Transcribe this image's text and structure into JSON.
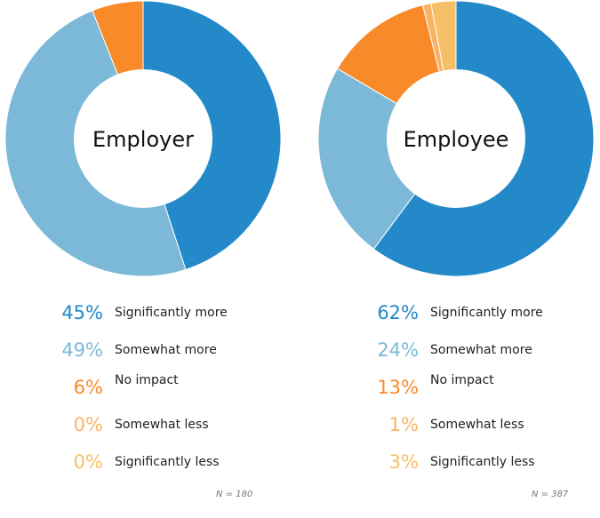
{
  "colors": {
    "significantly_more": "#2389c9",
    "somewhat_more": "#7cb9d9",
    "no_impact": "#f98a2a",
    "somewhat_less": "#fab366",
    "significantly_less": "#f6c068"
  },
  "categories": [
    "Significantly more",
    "Somewhat more",
    "No impact",
    "Somewhat less",
    "Significantly less"
  ],
  "chart_data": [
    {
      "type": "pie",
      "title": "Employer",
      "categories": [
        "Significantly more",
        "Somewhat more",
        "No impact",
        "Somewhat less",
        "Significantly less"
      ],
      "values": [
        45,
        49,
        6,
        0,
        0
      ],
      "value_labels": [
        "45%",
        "49%",
        "6%",
        "0%",
        "0%"
      ],
      "donut": true,
      "n_label": "N = 180"
    },
    {
      "type": "pie",
      "title": "Employee",
      "categories": [
        "Significantly more",
        "Somewhat more",
        "No impact",
        "Somewhat less",
        "Significantly less"
      ],
      "values": [
        62,
        24,
        13,
        1,
        3
      ],
      "value_labels": [
        "62%",
        "24%",
        "13%",
        "1%",
        "3%"
      ],
      "donut": true,
      "n_label": "N = 387"
    }
  ]
}
